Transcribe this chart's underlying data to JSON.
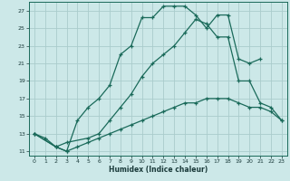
{
  "xlabel": "Humidex (Indice chaleur)",
  "background_color": "#cce8e8",
  "grid_color": "#aacccc",
  "line_color": "#1a6a5a",
  "xlim": [
    -0.5,
    23.5
  ],
  "ylim": [
    10.5,
    28.0
  ],
  "xticks": [
    0,
    1,
    2,
    3,
    4,
    5,
    6,
    7,
    8,
    9,
    10,
    11,
    12,
    13,
    14,
    15,
    16,
    17,
    18,
    19,
    20,
    21,
    22,
    23
  ],
  "yticks": [
    11,
    13,
    15,
    17,
    19,
    21,
    23,
    25,
    27
  ],
  "curve1_x": [
    0,
    1,
    2,
    3,
    4,
    5,
    6,
    7,
    8,
    9,
    10,
    11,
    12,
    13,
    14,
    15,
    16,
    17,
    18,
    19,
    20,
    21
  ],
  "curve1_y": [
    13,
    12.5,
    11.5,
    11,
    14.5,
    16,
    17,
    18.5,
    22,
    23,
    26.2,
    26.2,
    27.5,
    27.5,
    27.5,
    26.5,
    25.0,
    26.5,
    26.5,
    21.5,
    21.0,
    21.5
  ],
  "curve2_x": [
    0,
    2,
    3,
    5,
    6,
    7,
    8,
    9,
    10,
    11,
    12,
    13,
    14,
    15,
    16,
    17,
    18,
    19,
    20,
    21,
    22,
    23
  ],
  "curve2_y": [
    13,
    11.5,
    12.0,
    12.5,
    13.0,
    14.5,
    16.0,
    17.5,
    19.5,
    21.0,
    22.0,
    23.0,
    24.5,
    26.0,
    25.5,
    24.0,
    24.0,
    19.0,
    19.0,
    16.5,
    16.0,
    14.5
  ],
  "curve3_x": [
    0,
    2,
    3,
    4,
    5,
    6,
    7,
    8,
    9,
    10,
    11,
    12,
    13,
    14,
    15,
    16,
    17,
    18,
    19,
    20,
    21,
    22,
    23
  ],
  "curve3_y": [
    13,
    11.5,
    11.0,
    11.5,
    12.0,
    12.5,
    13.0,
    13.5,
    14.0,
    14.5,
    15.0,
    15.5,
    16.0,
    16.5,
    16.5,
    17.0,
    17.0,
    17.0,
    16.5,
    16.0,
    16.0,
    15.5,
    14.5
  ]
}
